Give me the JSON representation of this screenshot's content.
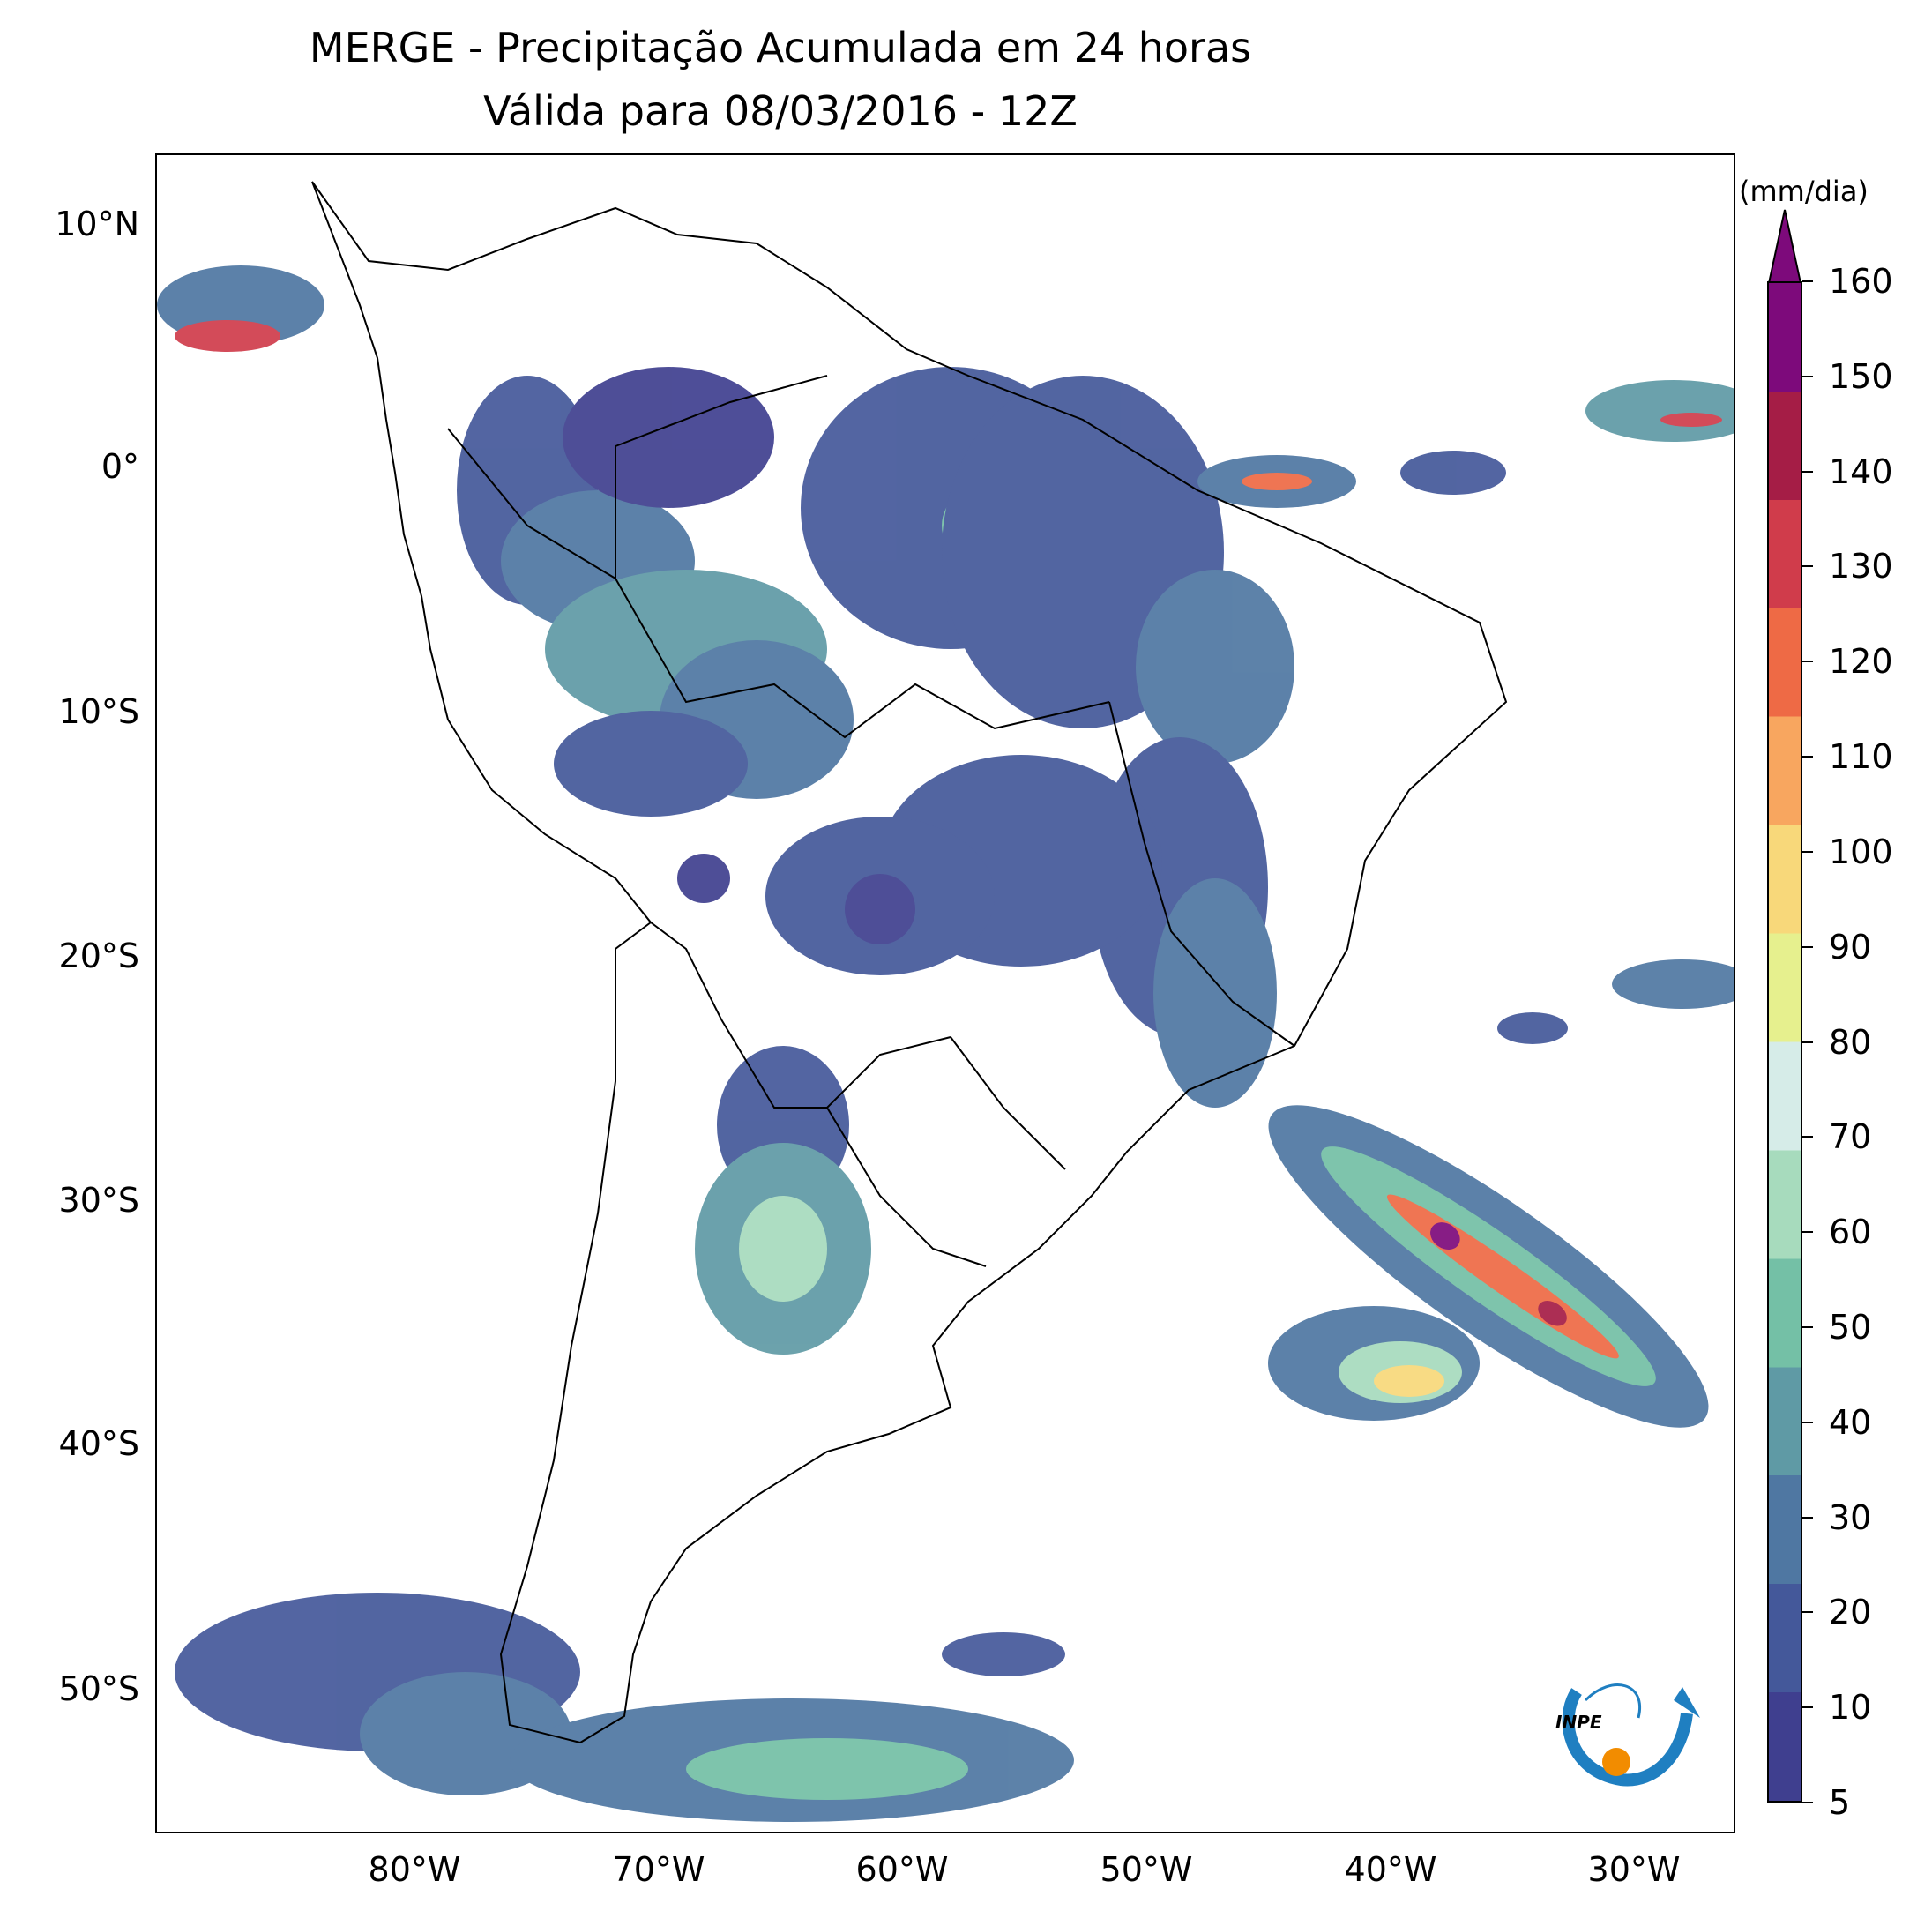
{
  "title": {
    "line1": "MERGE - Precipitação Acumulada em 24 horas",
    "line2": "Válida para 08/03/2016 - 12Z"
  },
  "map": {
    "lat_labels": [
      "10°N",
      "0°",
      "10°S",
      "20°S",
      "30°S",
      "40°S",
      "50°S"
    ],
    "lon_labels": [
      "80°W",
      "70°W",
      "60°W",
      "50°W",
      "40°W",
      "30°W"
    ],
    "lon_range": [
      -90,
      -25
    ],
    "lat_range": [
      -56,
      13
    ]
  },
  "colorbar": {
    "unit": "(mm/dia)",
    "tick_labels": [
      "5",
      "10",
      "20",
      "30",
      "40",
      "50",
      "60",
      "70",
      "80",
      "90",
      "100",
      "110",
      "120",
      "130",
      "140",
      "150",
      "160"
    ],
    "colors": [
      "#3f3f8f",
      "#44589a",
      "#4f77a2",
      "#5f9aa5",
      "#74c0a6",
      "#a7dbbd",
      "#d6ece8",
      "#e6f08e",
      "#f8d87a",
      "#f8a65f",
      "#ee6a45",
      "#d03c4b",
      "#a51d46",
      "#7d0a7b"
    ]
  },
  "logo": {
    "text": "INPE"
  }
}
